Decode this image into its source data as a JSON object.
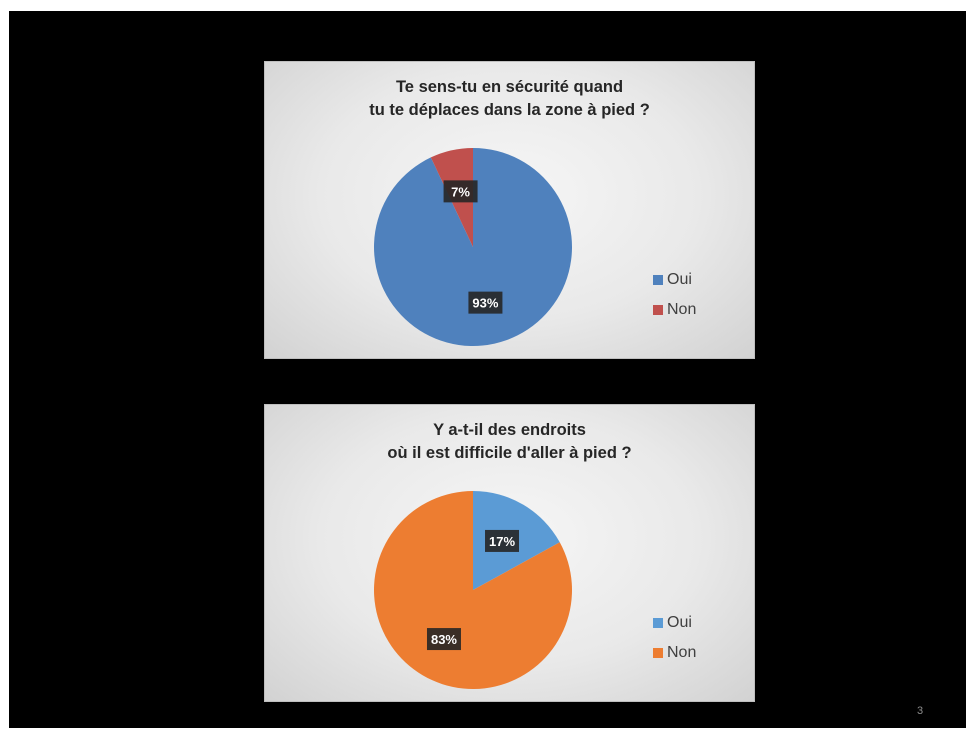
{
  "page": {
    "number": "3"
  },
  "chart_data": [
    {
      "type": "pie",
      "title": "Te sens-tu en sécurité quand\ntu te déplaces dans la zone à pied ?",
      "categories": [
        "Oui",
        "Non"
      ],
      "values": [
        93,
        7
      ],
      "labels": [
        "93%",
        "7%"
      ],
      "colors": [
        "#4f81bd",
        "#c0504d"
      ],
      "legend": "right"
    },
    {
      "type": "pie",
      "title": "Y a-t-il des endroits\noù il est difficile d'aller à pied ?",
      "categories": [
        "Oui",
        "Non"
      ],
      "values": [
        17,
        83
      ],
      "labels": [
        "17%",
        "83%"
      ],
      "colors": [
        "#5b9bd5",
        "#ed7d31"
      ],
      "legend": "right"
    }
  ]
}
